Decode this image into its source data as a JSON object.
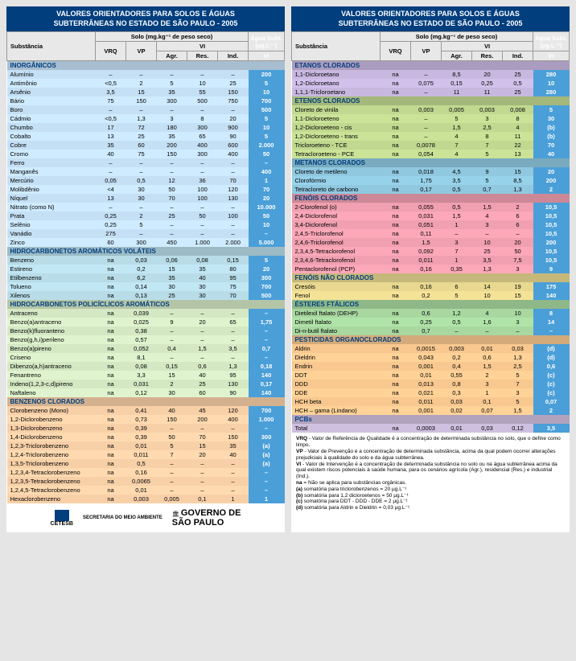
{
  "header": {
    "l1": "VALORES ORIENTADORES PARA SOLOS E ÁGUAS",
    "l2": "SUBTERRÂNEAS NO ESTADO DE SÃO PAULO - 2005"
  },
  "thead": {
    "substancia": "Substância",
    "solo": "Solo (mg.kg⁻¹ de peso seco)",
    "agua": "Água Subt. (µg.L⁻¹)",
    "vrq": "VRQ",
    "vp": "VP",
    "vi": "VI",
    "agr": "Agr.",
    "res": "Res.",
    "ind": "Ind."
  },
  "sections_left": [
    {
      "name": "INORGÂNICOS",
      "color": "#c5e0f5",
      "rows": [
        [
          "Alumínio",
          "–",
          "–",
          "–",
          "–",
          "–",
          "200"
        ],
        [
          "Antimônio",
          "<0,5",
          "2",
          "5",
          "10",
          "25",
          "5"
        ],
        [
          "Arsênio",
          "3,5",
          "15",
          "35",
          "55",
          "150",
          "10"
        ],
        [
          "Bário",
          "75",
          "150",
          "300",
          "500",
          "750",
          "700"
        ],
        [
          "Boro",
          "–",
          "–",
          "–",
          "–",
          "–",
          "500"
        ],
        [
          "Cádmio",
          "<0,5",
          "1,3",
          "3",
          "8",
          "20",
          "5"
        ],
        [
          "Chumbo",
          "17",
          "72",
          "180",
          "300",
          "900",
          "10"
        ],
        [
          "Cobalto",
          "13",
          "25",
          "35",
          "65",
          "90",
          "5"
        ],
        [
          "Cobre",
          "35",
          "60",
          "200",
          "400",
          "600",
          "2.000"
        ],
        [
          "Cromo",
          "40",
          "75",
          "150",
          "300",
          "400",
          "50"
        ],
        [
          "Ferro",
          "–",
          "–",
          "–",
          "–",
          "–",
          "–"
        ],
        [
          "Manganês",
          "–",
          "–",
          "–",
          "–",
          "–",
          "400"
        ],
        [
          "Mercúrio",
          "0,05",
          "0,5",
          "12",
          "36",
          "70",
          "1"
        ],
        [
          "Molibdênio",
          "<4",
          "30",
          "50",
          "100",
          "120",
          "70"
        ],
        [
          "Níquel",
          "13",
          "30",
          "70",
          "100",
          "130",
          "20"
        ],
        [
          "Nitrato (como N)",
          "–",
          "–",
          "–",
          "–",
          "–",
          "10.000"
        ],
        [
          "Prata",
          "0,25",
          "2",
          "25",
          "50",
          "100",
          "50"
        ],
        [
          "Selênio",
          "0,25",
          "5",
          "–",
          "–",
          "–",
          "10"
        ],
        [
          "Vanádio",
          "275",
          "–",
          "–",
          "–",
          "–",
          "–"
        ],
        [
          "Zinco",
          "60",
          "300",
          "450",
          "1.000",
          "2.000",
          "5.000"
        ]
      ]
    },
    {
      "name": "HIDROCARBONETOS AROMÁTICOS VOLÁTEIS",
      "color": "#b8dce8",
      "rows": [
        [
          "Benzeno",
          "na",
          "0,03",
          "0,06",
          "0,08",
          "0,15",
          "5"
        ],
        [
          "Estireno",
          "na",
          "0,2",
          "15",
          "35",
          "80",
          "20"
        ],
        [
          "Etilbenzeno",
          "na",
          "6,2",
          "35",
          "40",
          "95",
          "300"
        ],
        [
          "Tolueno",
          "na",
          "0,14",
          "30",
          "30",
          "75",
          "700"
        ],
        [
          "Xilenos",
          "na",
          "0,13",
          "25",
          "30",
          "70",
          "500"
        ]
      ]
    },
    {
      "name": "HIDROCARBONETOS POLICÍCLICOS AROMÁTICOS",
      "color": "#d4e8c4",
      "rows": [
        [
          "Antraceno",
          "na",
          "0,039",
          "–",
          "–",
          "–",
          "–"
        ],
        [
          "Benzo(a)antraceno",
          "na",
          "0,025",
          "9",
          "20",
          "65",
          "1,75"
        ],
        [
          "Benzo(k)fluoranteno",
          "na",
          "0,38",
          "–",
          "–",
          "–",
          "–"
        ],
        [
          "Benzo(g,h,i)perileno",
          "na",
          "0,57",
          "–",
          "–",
          "–",
          "–"
        ],
        [
          "Benzo(a)pireno",
          "na",
          "0,052",
          "0,4",
          "1,5",
          "3,5",
          "0,7"
        ],
        [
          "Criseno",
          "na",
          "8,1",
          "–",
          "–",
          "–",
          "–"
        ],
        [
          "Dibenzo(a,h)antraceno",
          "na",
          "0,08",
          "0,15",
          "0,6",
          "1,3",
          "0,18"
        ],
        [
          "Fenantreno",
          "na",
          "3,3",
          "15",
          "40",
          "95",
          "140"
        ],
        [
          "Indeno(1,2,3-c,d)pireno",
          "na",
          "0,031",
          "2",
          "25",
          "130",
          "0,17"
        ],
        [
          "Naftaleno",
          "na",
          "0,12",
          "30",
          "60",
          "90",
          "140"
        ]
      ]
    },
    {
      "name": "BENZENOS CLORADOS",
      "color": "#f8d0a8",
      "rows": [
        [
          "Clorobenzeno (Mono)",
          "na",
          "0,41",
          "40",
          "45",
          "120",
          "700"
        ],
        [
          "1,2-Diclorobenzeno",
          "na",
          "0,73",
          "150",
          "200",
          "400",
          "1.000"
        ],
        [
          "1,3-Diclorobenzeno",
          "na",
          "0,39",
          "–",
          "–",
          "–",
          "–"
        ],
        [
          "1,4-Diclorobenzeno",
          "na",
          "0,39",
          "50",
          "70",
          "150",
          "300"
        ],
        [
          "1,2,3-Triclorobenzeno",
          "na",
          "0,01",
          "5",
          "15",
          "35",
          "(a)"
        ],
        [
          "1,2,4-Triclorobenzeno",
          "na",
          "0,011",
          "7",
          "20",
          "40",
          "(a)"
        ],
        [
          "1,3,5-Triclorobenzeno",
          "na",
          "0,5",
          "–",
          "–",
          "–",
          "(a)"
        ],
        [
          "1,2,3,4-Tetraclorobenzeno",
          "na",
          "0,16",
          "–",
          "–",
          "–",
          "–"
        ],
        [
          "1,2,3,5-Tetraclorobenzeno",
          "na",
          "0,0065",
          "–",
          "–",
          "–",
          "–"
        ],
        [
          "1,2,4,5-Tetraclorobenzeno",
          "na",
          "0,01",
          "–",
          "–",
          "–",
          "–"
        ],
        [
          "Hexaclorobenzeno",
          "na",
          "0,003",
          "0,005",
          "0,1",
          "1",
          "1"
        ]
      ]
    }
  ],
  "sections_right": [
    {
      "name": "ETANOS CLORADOS",
      "color": "#c8b8e0",
      "rows": [
        [
          "1,1-Dicloroetano",
          "na",
          "–",
          "8,5",
          "20",
          "25",
          "280"
        ],
        [
          "1,2-Dicloroetano",
          "na",
          "0,075",
          "0,15",
          "0,25",
          "0,5",
          "10"
        ],
        [
          "1,1,1-Tricloroetano",
          "na",
          "–",
          "11",
          "11",
          "25",
          "280"
        ]
      ]
    },
    {
      "name": "ETENOS CLORADOS",
      "color": "#c0d890",
      "rows": [
        [
          "Cloreto de vinila",
          "na",
          "0,003",
          "0,005",
          "0,003",
          "0,008",
          "5"
        ],
        [
          "1,1-Dicloroeteno",
          "na",
          "–",
          "5",
          "3",
          "8",
          "30"
        ],
        [
          "1,2-Dicloroeteno - cis",
          "na",
          "–",
          "1,5",
          "2,5",
          "4",
          "(b)"
        ],
        [
          "1,2-Dicloroeteno - trans",
          "na",
          "–",
          "4",
          "8",
          "11",
          "(b)"
        ],
        [
          "Tricloroeteno - TCE",
          "na",
          "0,0078",
          "7",
          "7",
          "22",
          "70"
        ],
        [
          "Tetracloroeteno - PCE",
          "na",
          "0,054",
          "4",
          "5",
          "13",
          "40"
        ]
      ]
    },
    {
      "name": "METANOS CLORADOS",
      "color": "#90c8e0",
      "rows": [
        [
          "Cloreto de metileno",
          "na",
          "0,018",
          "4,5",
          "9",
          "15",
          "20"
        ],
        [
          "Clorofórmio",
          "na",
          "1,75",
          "3,5",
          "5",
          "8,5",
          "200"
        ],
        [
          "Tetracloreto de carbono",
          "na",
          "0,17",
          "0,5",
          "0,7",
          "1,3",
          "2"
        ]
      ]
    },
    {
      "name": "FENÓIS CLORADOS",
      "color": "#f0a0b0",
      "rows": [
        [
          "2-Clorofenol (o)",
          "na",
          "0,055",
          "0,5",
          "1,5",
          "2",
          "10,5"
        ],
        [
          "2,4-Diclorofenol",
          "na",
          "0,031",
          "1,5",
          "4",
          "6",
          "10,5"
        ],
        [
          "3,4-Diclorofenol",
          "na",
          "0,051",
          "1",
          "3",
          "6",
          "10,5"
        ],
        [
          "2,4,5-Triclorofenol",
          "na",
          "0,11",
          "–",
          "–",
          "–",
          "10,5"
        ],
        [
          "2,4,6-Triclorofenol",
          "na",
          "1,5",
          "3",
          "10",
          "20",
          "200"
        ],
        [
          "2,3,4,5-Tetraclorofenol",
          "na",
          "0,092",
          "7",
          "25",
          "50",
          "10,5"
        ],
        [
          "2,3,4,6-Tetraclorofenol",
          "na",
          "0,011",
          "1",
          "3,5",
          "7,5",
          "10,5"
        ],
        [
          "Pentaclorofenol (PCP)",
          "na",
          "0,16",
          "0,35",
          "1,3",
          "3",
          "9"
        ]
      ]
    },
    {
      "name": "FENÓIS NÃO CLORADOS",
      "color": "#e8d890",
      "rows": [
        [
          "Cresóis",
          "na",
          "0,16",
          "6",
          "14",
          "19",
          "175"
        ],
        [
          "Fenol",
          "na",
          "0,2",
          "5",
          "10",
          "15",
          "140"
        ]
      ]
    },
    {
      "name": "ÉSTERES FTÁLICOS",
      "color": "#a8d8a0",
      "rows": [
        [
          "Dietilexil ftalato (DEHP)",
          "na",
          "0,6",
          "1,2",
          "4",
          "10",
          "8"
        ],
        [
          "Dimetil ftalato",
          "na",
          "0,25",
          "0,5",
          "1,6",
          "3",
          "14"
        ],
        [
          "Di-n-butil ftalato",
          "na",
          "0,7",
          "–",
          "–",
          "–",
          "–"
        ]
      ]
    },
    {
      "name": "PESTICIDAS ORGANOCLORADOS",
      "color": "#f8c890",
      "rows": [
        [
          "Aldrin",
          "na",
          "0,0015",
          "0,003",
          "0,01",
          "0,03",
          "(d)"
        ],
        [
          "Dieldrin",
          "na",
          "0,043",
          "0,2",
          "0,6",
          "1,3",
          "(d)"
        ],
        [
          "Endrin",
          "na",
          "0,001",
          "0,4",
          "1,5",
          "2,5",
          "0,6"
        ],
        [
          "DDT",
          "na",
          "0,01",
          "0,55",
          "2",
          "5",
          "(c)"
        ],
        [
          "DDD",
          "na",
          "0,013",
          "0,8",
          "3",
          "7",
          "(c)"
        ],
        [
          "DDE",
          "na",
          "0,021",
          "0,3",
          "1",
          "3",
          "(c)"
        ],
        [
          "HCH beta",
          "na",
          "0,011",
          "0,03",
          "0,1",
          "5",
          "0,07"
        ],
        [
          "HCH – gama (Lindano)",
          "na",
          "0,001",
          "0,02",
          "0,07",
          "1,5",
          "2"
        ]
      ]
    },
    {
      "name": "PCBs",
      "color": "#d0c0e0",
      "rows": [
        [
          "Total",
          "na",
          "0,0003",
          "0,01",
          "0,03",
          "0,12",
          "3,5"
        ]
      ]
    }
  ],
  "footer": {
    "cetesb": "CETESB",
    "sec": "SECRETARIA DO MEIO AMBIENTE",
    "gov": "GOVERNO DE",
    "sp": "SÃO PAULO"
  },
  "notes": [
    "VRQ - Valor de Referência de Qualidade é a concentração de determinada substância no solo, que o define como limpo.",
    "VP - Valor de Prevenção é a concentração de determinada substância, acima da qual podem ocorrer alterações prejudiciais à qualidade do solo e da água subterrânea.",
    "VI - Valor de Intervenção é a concentração de determinada substância no solo ou na água subterrânea acima da qual existem riscos potenciais à saúde humana, para os cenários agrícola (Agr.), residencial (Res.) e industrial (Ind.).",
    "na = Não se aplica para substâncias orgânicas.",
    "(a) somatória para triclorobenzenos = 20 µg.L⁻¹",
    "(b) somatória para 1,2 dicloroetenos = 50 µg.L⁻¹",
    "(c) somatória para DDT - DDD - DDE = 2 µg.L⁻¹",
    "(d) somatória para Aldrin e Dieldrin = 0,03 µg.L⁻¹"
  ]
}
